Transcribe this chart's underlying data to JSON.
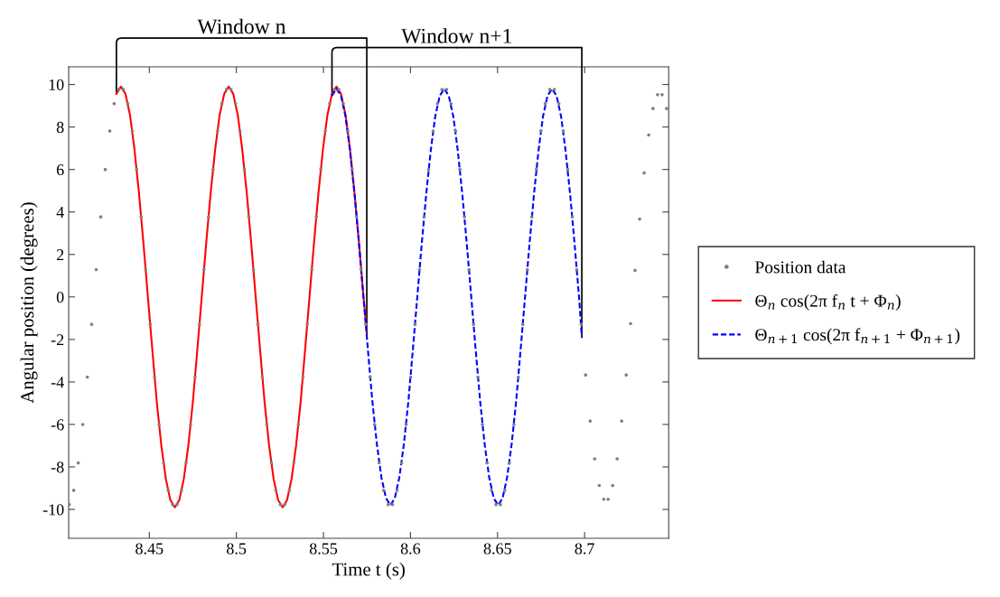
{
  "chart_data": {
    "type": "line",
    "xlabel": "Time t (s)",
    "ylabel": "Angular position (degrees)",
    "xlim": [
      8.4037,
      8.7483
    ],
    "xticks": [
      8.45,
      8.5,
      8.55,
      8.6,
      8.65,
      8.7
    ],
    "ylim": [
      -11.36,
      10.83
    ],
    "yticks": [
      {
        "value": -10,
        "label": "-10"
      },
      {
        "value": -8,
        "label": "-8"
      },
      {
        "value": -6,
        "label": "-6"
      },
      {
        "value": -4,
        "label": "-4"
      },
      {
        "value": -2,
        "label": "-2"
      },
      0,
      2,
      4,
      6,
      8,
      10
    ],
    "grid": false,
    "legend": "right",
    "annotations": [
      {
        "text": "Window n",
        "x": 8.4311,
        "y": 9.56
      },
      {
        "text": "Window n+1",
        "x": 8.5549,
        "y": 9.47
      }
    ],
    "ref_lines": [
      {
        "axis": "x",
        "value": 8.5749,
        "color": "#000000"
      },
      {
        "axis": "x",
        "value": 8.6984,
        "color": "#000000"
      }
    ],
    "series": [
      {
        "name": "Position data",
        "type": "scatter",
        "marker": "circle",
        "color": "#808080",
        "x": [
          8.404,
          8.4066,
          8.4092,
          8.4118,
          8.4144,
          8.4169,
          8.4195,
          8.4221,
          8.4247,
          8.4273,
          8.4298,
          8.4324,
          8.435,
          8.4376,
          8.4402,
          8.4427,
          8.4453,
          8.4479,
          8.4505,
          8.453,
          8.4556,
          8.4582,
          8.4608,
          8.4634,
          8.4659,
          8.4685,
          8.4711,
          8.4737,
          8.4763,
          8.4788,
          8.4814,
          8.484,
          8.4866,
          8.4892,
          8.4917,
          8.4943,
          8.4969,
          8.4995,
          8.5021,
          8.5046,
          8.5072,
          8.5098,
          8.5124,
          8.5149,
          8.5175,
          8.5201,
          8.5227,
          8.5253,
          8.5278,
          8.5304,
          8.533,
          8.5356,
          8.5382,
          8.5407,
          8.5433,
          8.5459,
          8.5485,
          8.5511,
          8.5536,
          8.5562,
          8.5588,
          8.5614,
          8.564,
          8.5665,
          8.5691,
          8.5717,
          8.5743,
          8.5768,
          8.5794,
          8.582,
          8.5846,
          8.5872,
          8.5897,
          8.5923,
          8.5949,
          8.5975,
          8.6001,
          8.6026,
          8.6052,
          8.6078,
          8.6104,
          8.613,
          8.6155,
          8.6181,
          8.6207,
          8.6233,
          8.6259,
          8.6284,
          8.631,
          8.6336,
          8.6362,
          8.6387,
          8.6413,
          8.6439,
          8.6465,
          8.6491,
          8.6516,
          8.6542,
          8.6568,
          8.6594,
          8.662,
          8.6645,
          8.6671,
          8.6697,
          8.6723,
          8.6749,
          8.6774,
          8.68,
          8.6826,
          8.6852,
          8.6878,
          8.6903,
          8.6929,
          8.6955,
          8.6981,
          8.7006,
          8.7032,
          8.7058,
          8.7084,
          8.711,
          8.7135,
          8.7161,
          8.7187,
          8.7213,
          8.7239,
          8.7264,
          8.729,
          8.7316,
          8.7342,
          8.7368,
          8.7393,
          8.7419,
          8.7445,
          8.7471
        ],
        "values": [
          -9.77,
          -9.1,
          -7.81,
          -6.0,
          -3.77,
          -1.29,
          1.29,
          3.77,
          6.0,
          7.81,
          9.1,
          9.77,
          9.77,
          9.1,
          7.81,
          6.0,
          3.77,
          1.29,
          -1.29,
          -3.77,
          -6.0,
          -7.81,
          -9.1,
          -9.77,
          -9.77,
          -9.1,
          -7.81,
          -6.0,
          -3.77,
          -1.29,
          1.29,
          3.77,
          6.0,
          7.81,
          9.1,
          9.77,
          9.77,
          9.1,
          7.81,
          6.0,
          3.77,
          1.29,
          -1.29,
          -3.77,
          -6.0,
          -7.81,
          -9.1,
          -9.77,
          -9.77,
          -9.1,
          -7.81,
          -6.0,
          -3.77,
          -1.29,
          1.29,
          3.77,
          6.0,
          7.81,
          9.1,
          9.77,
          9.77,
          9.1,
          7.81,
          6.0,
          3.77,
          1.29,
          -1.29,
          -3.77,
          -6.0,
          -7.81,
          -9.1,
          -9.77,
          -9.77,
          -9.1,
          -7.81,
          -6.0,
          -3.77,
          -1.29,
          1.29,
          3.77,
          6.0,
          7.81,
          9.1,
          9.77,
          9.77,
          9.1,
          7.81,
          6.0,
          3.77,
          1.29,
          -1.29,
          -3.77,
          -6.0,
          -7.81,
          -9.1,
          -9.77,
          -9.77,
          -9.1,
          -7.81,
          -6.0,
          -3.77,
          -1.29,
          1.29,
          3.77,
          6.0,
          7.81,
          9.1,
          9.77,
          9.77,
          9.1,
          7.81,
          6.0,
          3.77,
          1.29,
          -1.29,
          -3.67,
          -5.84,
          -7.62,
          -8.87,
          -9.52,
          -9.52,
          -8.87,
          -7.62,
          -5.84,
          -3.67,
          -1.25,
          1.25,
          3.67,
          5.84,
          7.62,
          8.87,
          9.52,
          9.52,
          8.87
        ]
      },
      {
        "name": "Θ$_{n}$ cos(2π f$_{n}$ t + Φ$_{n}$)",
        "line_style": "solid",
        "color": "#ff0000",
        "x": [
          8.4311,
          8.4337,
          8.4363,
          8.4389,
          8.4414,
          8.444,
          8.4466,
          8.4492,
          8.4518,
          8.4543,
          8.4569,
          8.4595,
          8.4621,
          8.4647,
          8.4672,
          8.4698,
          8.4724,
          8.475,
          8.4775,
          8.4801,
          8.4827,
          8.4853,
          8.4879,
          8.4904,
          8.493,
          8.4956,
          8.4982,
          8.5008,
          8.5033,
          8.5059,
          8.5085,
          8.5111,
          8.5137,
          8.5162,
          8.5188,
          8.5214,
          8.524,
          8.5266,
          8.5291,
          8.5317,
          8.5343,
          8.5369,
          8.5394,
          8.542,
          8.5446,
          8.5472,
          8.5498,
          8.5523,
          8.5549,
          8.5575,
          8.5601,
          8.5627,
          8.5652,
          8.5678,
          8.5704,
          8.573,
          8.5749
        ],
        "values": [
          9.56,
          9.9,
          9.56,
          8.57,
          7.0,
          4.95,
          2.56,
          0,
          -2.56,
          -4.95,
          -7.0,
          -8.57,
          -9.56,
          -9.9,
          -9.56,
          -8.57,
          -7.0,
          -4.95,
          -2.56,
          0,
          2.56,
          4.95,
          7.0,
          8.57,
          9.56,
          9.9,
          9.56,
          8.57,
          7.0,
          4.95,
          2.56,
          0,
          -2.56,
          -4.95,
          -7.0,
          -8.57,
          -9.56,
          -9.9,
          -9.56,
          -8.57,
          -7.0,
          -4.95,
          -2.56,
          0,
          2.56,
          4.95,
          7.0,
          8.57,
          9.56,
          9.9,
          9.56,
          8.57,
          7.0,
          4.95,
          2.56,
          0,
          -1.6
        ]
      },
      {
        "name": "Θ$_{n+1}$ cos(2π f$_{n+1}$ + Φ$_{n+1}$)",
        "type": "line",
        "line_style": "dashed",
        "color": "#0000ff",
        "x": [
          8.5549,
          8.5575,
          8.5601,
          8.5627,
          8.5652,
          8.5678,
          8.5704,
          8.573,
          8.5756,
          8.5781,
          8.5807,
          8.5833,
          8.5859,
          8.5885,
          8.591,
          8.5936,
          8.5962,
          8.5988,
          8.6013,
          8.6039,
          8.6065,
          8.6091,
          8.6117,
          8.6142,
          8.6168,
          8.6194,
          8.622,
          8.6246,
          8.6271,
          8.6297,
          8.6323,
          8.6349,
          8.6375,
          8.64,
          8.6426,
          8.6452,
          8.6478,
          8.6504,
          8.6529,
          8.6555,
          8.6581,
          8.6607,
          8.6632,
          8.6658,
          8.6684,
          8.671,
          8.6736,
          8.6761,
          8.6787,
          8.6813,
          8.6839,
          8.6865,
          8.689,
          8.6916,
          8.6942,
          8.6968,
          8.6984
        ],
        "values": [
          9.47,
          9.8,
          9.47,
          8.49,
          6.93,
          4.9,
          2.54,
          0,
          -2.54,
          -4.9,
          -6.93,
          -8.49,
          -9.47,
          -9.8,
          -9.47,
          -8.49,
          -6.93,
          -4.9,
          -2.54,
          0,
          2.54,
          4.9,
          6.93,
          8.49,
          9.47,
          9.8,
          9.47,
          8.49,
          6.93,
          4.9,
          2.54,
          0,
          -2.54,
          -4.9,
          -6.93,
          -8.49,
          -9.47,
          -9.8,
          -9.47,
          -8.49,
          -6.93,
          -4.9,
          -2.54,
          0,
          2.54,
          4.9,
          6.93,
          8.49,
          9.47,
          9.8,
          9.47,
          8.49,
          6.93,
          4.9,
          2.54,
          0,
          -1.9
        ]
      }
    ]
  }
}
